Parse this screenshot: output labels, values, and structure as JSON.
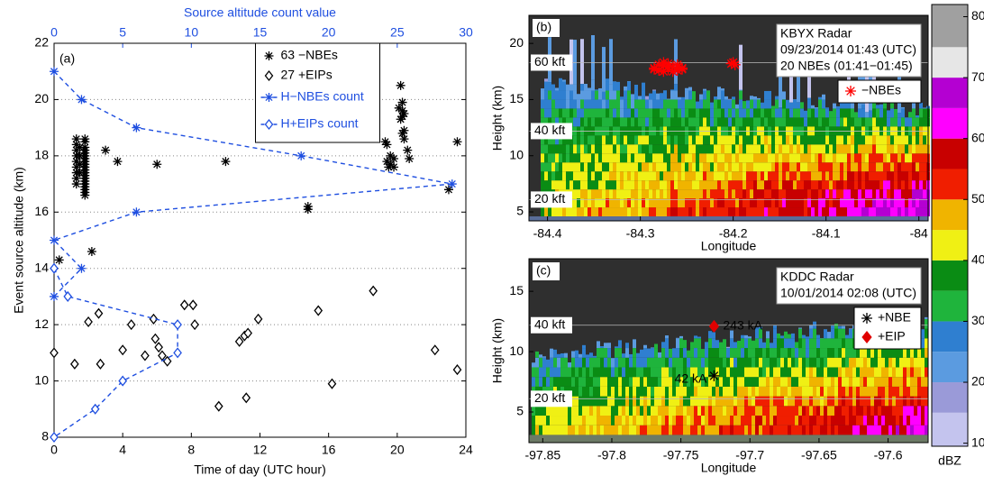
{
  "chart_data": [
    {
      "type": "scatter",
      "title": "(a)",
      "xlabel": "Time of day (UTC hour)",
      "ylabel": "Event source altitude (km)",
      "x2label": "Source altitude count value",
      "x2color": "#1f4fe0",
      "xlim": [
        0,
        24
      ],
      "xticks": [
        0,
        4,
        8,
        12,
        16,
        20,
        24
      ],
      "x2lim": [
        0,
        30
      ],
      "x2ticks": [
        0,
        5,
        10,
        15,
        20,
        25,
        30
      ],
      "ylim": [
        8,
        22
      ],
      "yticks": [
        8,
        10,
        12,
        14,
        16,
        18,
        20,
        22
      ],
      "grid": true,
      "legend": "upper center",
      "series": [
        {
          "name": "63 −NBEs",
          "color": "#000000",
          "marker": "asterisk",
          "x": [
            1.8,
            1.8,
            1.8,
            1.8,
            1.8,
            1.8,
            1.8,
            1.8,
            1.8,
            1.8,
            1.8,
            1.8,
            1.8,
            1.8,
            1.8,
            1.8,
            1.8,
            1.8,
            1.8,
            1.8,
            1.3,
            1.3,
            1.3,
            1.3,
            1.3,
            1.3,
            1.3,
            1.3,
            1.3,
            1.5,
            1.5,
            1.5,
            1.5,
            0.3,
            2.2,
            3.0,
            3.7,
            6.0,
            10.0,
            14.8,
            14.8,
            19.3,
            19.4,
            19.4,
            19.5,
            19.6,
            19.8,
            19.6,
            20.2,
            20.3,
            20.3,
            20.4,
            20.3,
            20.4,
            20.4,
            20.6,
            20.7,
            20.1,
            20.2,
            20.3,
            19.8,
            23.0,
            23.5
          ],
          "y": [
            18.6,
            18.5,
            18.3,
            18.2,
            18.1,
            18.0,
            17.9,
            17.8,
            17.7,
            17.6,
            17.5,
            17.4,
            17.3,
            17.2,
            17.1,
            17.0,
            16.9,
            16.8,
            16.7,
            16.6,
            18.6,
            18.4,
            18.2,
            18.0,
            17.8,
            17.6,
            17.4,
            17.2,
            17.0,
            18.3,
            18.0,
            17.7,
            17.4,
            14.3,
            14.6,
            18.2,
            17.8,
            17.7,
            17.8,
            16.1,
            16.2,
            18.5,
            18.4,
            17.8,
            17.6,
            17.7,
            17.9,
            18.0,
            20.5,
            19.9,
            19.6,
            19.5,
            19.4,
            18.9,
            18.6,
            18.2,
            17.9,
            19.7,
            19.3,
            18.8,
            17.6,
            16.8,
            18.5
          ]
        },
        {
          "name": "27 +EIPs",
          "color": "#000000",
          "marker": "diamond",
          "x": [
            0.0,
            1.2,
            2.0,
            2.6,
            2.7,
            4.0,
            4.5,
            5.3,
            5.8,
            5.9,
            6.1,
            6.3,
            6.6,
            7.6,
            8.1,
            8.2,
            9.6,
            10.8,
            11.1,
            11.2,
            11.3,
            11.9,
            15.4,
            16.2,
            18.6,
            22.2,
            23.5
          ],
          "y": [
            11.0,
            10.6,
            12.1,
            12.4,
            10.6,
            11.1,
            12.0,
            10.9,
            12.2,
            11.5,
            11.2,
            10.9,
            10.7,
            12.7,
            12.7,
            12.0,
            9.1,
            11.4,
            11.6,
            9.4,
            11.7,
            12.2,
            12.5,
            9.9,
            13.2,
            11.1,
            10.4
          ]
        },
        {
          "name": "H−NBEs count",
          "type": "line",
          "axis": "x2",
          "color": "#1f4fe0",
          "marker": "asterisk",
          "x": [
            0,
            2,
            6,
            18,
            29,
            6,
            0,
            2,
            0
          ],
          "y": [
            21,
            20,
            19,
            18,
            17,
            16,
            15,
            14,
            13
          ]
        },
        {
          "name": "H+EIPs count",
          "type": "line",
          "axis": "x2",
          "color": "#1f4fe0",
          "marker": "diamond",
          "x": [
            0,
            1,
            9,
            9,
            5,
            3,
            0
          ],
          "y": [
            14,
            13,
            12,
            11,
            10,
            9,
            8
          ]
        }
      ]
    },
    {
      "type": "radar",
      "title": "(b)",
      "xlabel": "Longitude",
      "ylabel": "Height (km)",
      "xlim": [
        -84.42,
        -83.99
      ],
      "xticks": [
        -84.4,
        -84.3,
        -84.2,
        -84.1,
        -84
      ],
      "ylim": [
        4.2,
        22.5
      ],
      "yticks": [
        5,
        10,
        15,
        20
      ],
      "annotation": [
        "KBYX Radar",
        "09/23/2014 01:43 (UTC)",
        "20 NBEs (01:41−01:45)"
      ],
      "altitude_labels": [
        "60 kft",
        "40 kft",
        "20 kft"
      ],
      "series": [
        {
          "name": "−NBEs",
          "color": "#ff0000",
          "marker": "asterisk",
          "x": [
            -84.285,
            -84.28,
            -84.275,
            -84.27,
            -84.265,
            -84.26,
            -84.255,
            -84.28,
            -84.27,
            -84.26,
            -84.275,
            -84.265,
            -84.285,
            -84.27,
            -84.26,
            -84.255,
            -84.275,
            -84.2,
            -84.198,
            -84.202
          ],
          "y": [
            17.8,
            17.6,
            18.0,
            17.7,
            17.9,
            17.6,
            17.8,
            18.1,
            18.2,
            18.1,
            17.5,
            17.5,
            17.7,
            17.9,
            17.9,
            17.7,
            18.3,
            18.3,
            18.1,
            18.2
          ]
        }
      ]
    },
    {
      "type": "radar",
      "title": "(c)",
      "xlabel": "Longitude",
      "ylabel": "Height (km)",
      "xlim": [
        -97.86,
        -97.571
      ],
      "xticks": [
        -97.85,
        -97.8,
        -97.75,
        -97.7,
        -97.65,
        -97.6
      ],
      "ylim": [
        2.46,
        17.7
      ],
      "yticks": [
        5,
        10,
        15
      ],
      "annotation": [
        "KDDC Radar",
        "10/01/2014 02:08 (UTC)"
      ],
      "altitude_labels": [
        "40 kft",
        "20 kft"
      ],
      "series": [
        {
          "name": "+NBE",
          "color": "#000000",
          "marker": "asterisk",
          "x": [
            -97.726
          ],
          "y": [
            8.0
          ],
          "labels": [
            "42 kA"
          ]
        },
        {
          "name": "+EIP",
          "color": "#e00000",
          "marker": "diamond-filled",
          "x": [
            -97.726
          ],
          "y": [
            12.1
          ],
          "labels": [
            "243 kA"
          ]
        }
      ]
    },
    {
      "type": "colorbar",
      "label": "dBZ",
      "ylim": [
        9.5,
        82
      ],
      "yticks": [
        10,
        20,
        30,
        40,
        50,
        60,
        70,
        80
      ],
      "colors": [
        "#c4c4ee",
        "#9a9ad8",
        "#5b9be0",
        "#2f7fd0",
        "#1fb43c",
        "#0a8c14",
        "#f0f014",
        "#f0b400",
        "#f01e00",
        "#c80000",
        "#ff00ff",
        "#b400d2",
        "#e6e6e6",
        "#a0a0a0"
      ]
    }
  ]
}
